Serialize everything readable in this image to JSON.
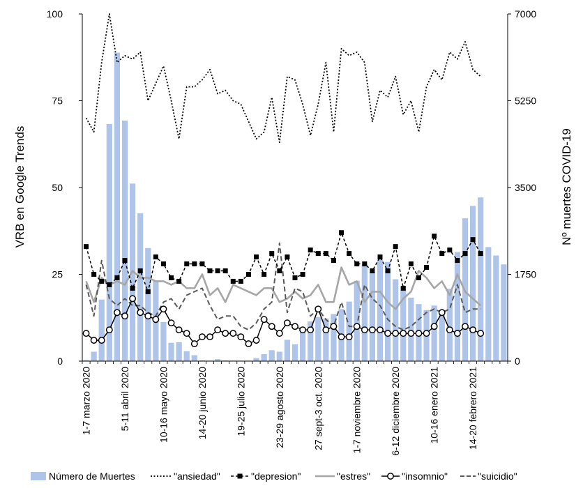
{
  "chart_data": {
    "type": "bar+line",
    "ylabel_left": "VRB en Google Trends",
    "ylabel_right": "Nº muertes COVID-19",
    "ylim_left": [
      0,
      100
    ],
    "ylim_right": [
      0,
      7000
    ],
    "yticks_left": [
      "0",
      "25",
      "50",
      "75",
      "100"
    ],
    "yticks_right": [
      "0",
      "1750",
      "3500",
      "5250",
      "7000"
    ],
    "xticks": [
      {
        "index": 0,
        "label": "1-7 marzo 2020"
      },
      {
        "index": 5,
        "label": "5-11 abril 2020"
      },
      {
        "index": 10,
        "label": "10-16 mayo 2020"
      },
      {
        "index": 15,
        "label": "14-20 junio 2020"
      },
      {
        "index": 20,
        "label": "19-25 julio 2020"
      },
      {
        "index": 25,
        "label": "23-29 agosto 2020"
      },
      {
        "index": 30,
        "label": "27 sept-3 oct. 2020"
      },
      {
        "index": 35,
        "label": "1-7 noviembre 2020"
      },
      {
        "index": 40,
        "label": "6-12 diciembre 2020"
      },
      {
        "index": 45,
        "label": "10-16 enero 2021"
      },
      {
        "index": 50,
        "label": "14-20 febrero 2021"
      }
    ],
    "grid": false,
    "legend_position": "bottom",
    "series": [
      {
        "name": "Número de Muertes",
        "kind": "bar",
        "axis": "right",
        "color": "#aec4e8",
        "values": [
          20,
          190,
          1240,
          4780,
          6220,
          4850,
          3580,
          2980,
          2280,
          1620,
          790,
          370,
          380,
          200,
          120,
          15,
          10,
          40,
          15,
          10,
          10,
          10,
          60,
          140,
          220,
          190,
          430,
          340,
          600,
          800,
          890,
          860,
          950,
          1050,
          1200,
          1620,
          1950,
          1800,
          2050,
          2000,
          1650,
          1500,
          1280,
          1150,
          1030,
          1120,
          960,
          1460,
          2200,
          2880,
          3130,
          3300,
          2300,
          2130,
          1950
        ]
      },
      {
        "name": "\"ansiedad\"",
        "kind": "line",
        "axis": "left",
        "style": "dotted",
        "marker": "none",
        "values": [
          70,
          66,
          86,
          100,
          86,
          88,
          87,
          89,
          75,
          80,
          85,
          75,
          64,
          79,
          79,
          81,
          84,
          77,
          78,
          75,
          74,
          69,
          64,
          66,
          76,
          63,
          82,
          81,
          74,
          65,
          74,
          86,
          66,
          90,
          88,
          89,
          86,
          69,
          78,
          76,
          82,
          71,
          75,
          66,
          79,
          84,
          81,
          89,
          87,
          92,
          84,
          82
        ]
      },
      {
        "name": "\"depresion\"",
        "kind": "line",
        "axis": "left",
        "style": "dashed",
        "marker": "square",
        "values": [
          33,
          25,
          23,
          22,
          24,
          29,
          21,
          26,
          20,
          30,
          28,
          24,
          23,
          28,
          28,
          28,
          26,
          26,
          26,
          23,
          23,
          25,
          30,
          25,
          31,
          26,
          30,
          24,
          25,
          32,
          31,
          31,
          29,
          37,
          31,
          28,
          28,
          26,
          30,
          26,
          33,
          21,
          28,
          24,
          27,
          36,
          31,
          32,
          29,
          31,
          35,
          31
        ]
      },
      {
        "name": "\"estres\"",
        "kind": "line",
        "axis": "left",
        "style": "solid",
        "marker": "none",
        "values": [
          23,
          17,
          24,
          22,
          23,
          22,
          26,
          24,
          24,
          23,
          23,
          22,
          23,
          21,
          21,
          25,
          19,
          21,
          17,
          22,
          21,
          20,
          19,
          21,
          21,
          17,
          18,
          20,
          18,
          19,
          22,
          17,
          17,
          27,
          22,
          23,
          17,
          20,
          20,
          17,
          15,
          18,
          20,
          26,
          24,
          21,
          23,
          19,
          25,
          20,
          18,
          16
        ]
      },
      {
        "name": "\"insomnio\"",
        "kind": "line",
        "axis": "left",
        "style": "solid",
        "marker": "circle",
        "values": [
          8,
          6,
          6,
          9,
          14,
          13,
          18,
          14,
          13,
          12,
          15,
          11,
          9,
          8,
          5,
          7,
          7,
          9,
          8,
          8,
          7,
          5,
          6,
          12,
          10,
          8,
          11,
          10,
          9,
          9,
          15,
          9,
          10,
          7,
          7,
          10,
          9,
          9,
          9,
          8,
          8,
          8,
          8,
          8,
          8,
          10,
          14,
          9,
          8,
          10,
          9,
          8
        ]
      },
      {
        "name": "\"suicidio\"",
        "kind": "line",
        "axis": "left",
        "style": "dashed",
        "marker": "none",
        "values": [
          22,
          13,
          29,
          18,
          16,
          18,
          16,
          16,
          14,
          13,
          17,
          18,
          15,
          19,
          20,
          21,
          16,
          12,
          13,
          13,
          10,
          9,
          11,
          15,
          17,
          34,
          14,
          21,
          20,
          13,
          15,
          12,
          10,
          17,
          10,
          10,
          22,
          18,
          16,
          12,
          10,
          9,
          10,
          12,
          14,
          15,
          14,
          15,
          22,
          14,
          15,
          15
        ]
      }
    ],
    "legend": [
      {
        "label": "Número de Muertes"
      },
      {
        "label": "\"ansiedad\""
      },
      {
        "label": "\"depresion\""
      },
      {
        "label": "\"estres\""
      },
      {
        "label": "\"insomnio\""
      },
      {
        "label": "\"suicidio\""
      }
    ]
  }
}
